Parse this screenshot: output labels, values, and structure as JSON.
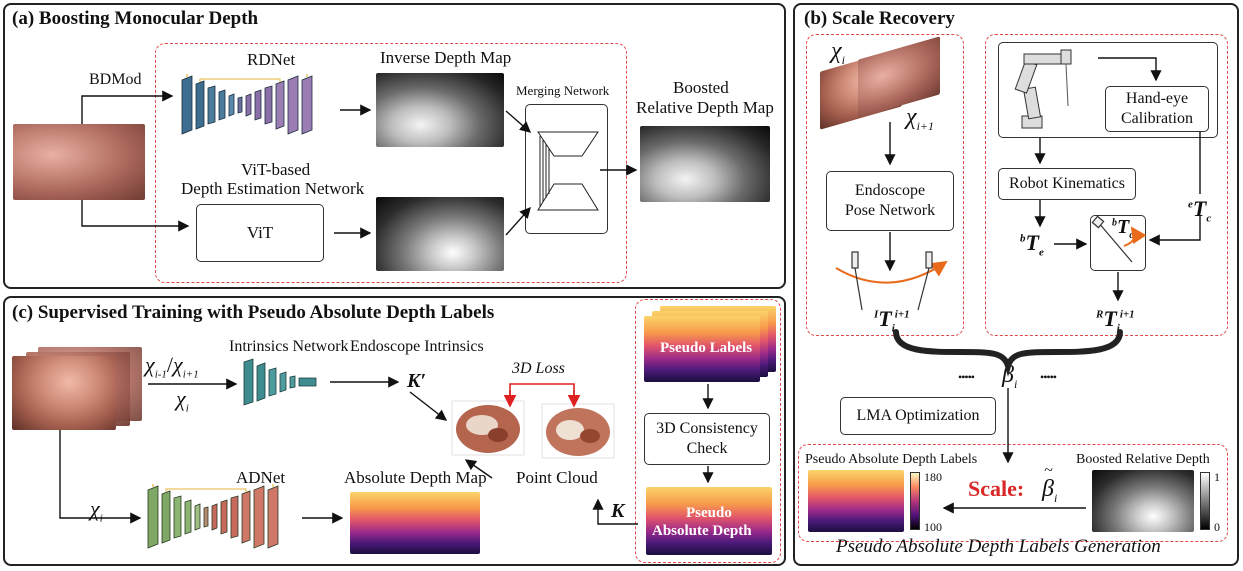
{
  "panel_a": {
    "title": "(a) Boosting Monocular Depth",
    "bdmod": "BDMod",
    "rdnet": "RDNet",
    "inverse_depth_map": "Inverse Depth Map",
    "merging_network": "Merging Network",
    "boosted_line1": "Boosted",
    "boosted_line2": "Relative Depth Map",
    "vit_line1": "ViT-based",
    "vit_line2": "Depth Estimation Network",
    "vit_box": "ViT"
  },
  "panel_b": {
    "title": "(b) Scale Recovery",
    "x_i": "χ",
    "x_i_sub": "i",
    "x_i1": "χ",
    "x_i1_sub": "i+1",
    "pose_net_line1": "Endoscope",
    "pose_net_line2": "Pose Network",
    "hand_eye_line1": "Hand-eye",
    "hand_eye_line2": "Calibration",
    "robot_kin": "Robot Kinematics",
    "bTe": "T",
    "bTe_sup": "b",
    "bTe_sub": "e",
    "eTc": "T",
    "eTc_sup": "e",
    "eTc_sub": "c",
    "bTc": "T",
    "bTc_sup": "b",
    "bTc_sub": "c",
    "ITi": "T",
    "ITi_sup": "I",
    "ITi_sub": "i",
    "ITi_supr": "i+1",
    "RTi": "T",
    "RTi_sup": "R",
    "RTi_sub": "i",
    "RTi_supr": "i+1",
    "dots_left": "•••••",
    "dots_right": "•••••",
    "beta": "β",
    "beta_sub": "i",
    "lma": "LMA Optimization",
    "pseudo_abs_labels": "Pseudo Absolute Depth Labels",
    "boosted_rel": "Boosted Relative Depth",
    "scale_label": "Scale:",
    "beta_tilde": "β",
    "beta_tilde_sub": "i",
    "cbar1_max": "180",
    "cbar1_min": "100",
    "cbar2_max": "1",
    "cbar2_min": "0",
    "footer": "Pseudo Absolute Depth Labels Generation"
  },
  "panel_c": {
    "title": "(c) Supervised Training with Pseudo Absolute Depth Labels",
    "x_pair_a": "χ",
    "x_pair_a_sub": "i-1",
    "x_pair_slash": "/",
    "x_pair_b": "χ",
    "x_pair_b_sub": "i+1",
    "x_pair_c": "χ",
    "x_pair_c_sub": "i",
    "intrinsics_net": "Intrinsics Network",
    "endo_intrinsics": "Endoscope Intrinsics",
    "k_prime": "K′",
    "loss_3d": "3D Loss",
    "adnet": "ADNet",
    "x_ad": "χ",
    "x_ad_sub": "i",
    "abs_depth_map": "Absolute Depth Map",
    "point_cloud": "Point Cloud",
    "k": "K",
    "pseudo_labels": "Pseudo Labels",
    "consistency_line1": "3D Consistency",
    "consistency_line2": "Check",
    "pseudo_abs_line1": "Pseudo",
    "pseudo_abs_line2": "Absolute Depth"
  },
  "colors": {
    "dash_red": "#e04848",
    "scale_red": "#d92626",
    "arrow_orange": "#e86a1a",
    "rdnet_blue": "#3d6d8f",
    "rdnet_purple": "#8b6fa8",
    "intr_teal": "#3e8c8f",
    "adnet_green": "#7fa866",
    "adnet_red": "#c76a5e"
  }
}
